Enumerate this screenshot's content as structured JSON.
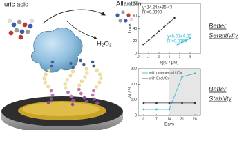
{
  "illustration": {
    "substrate": "uric acid",
    "product": "Allantoin",
    "byproduct": "H₂O₂"
  },
  "annotations": [
    [
      "Better",
      "Sensitivity"
    ],
    [
      "Better",
      "Stability"
    ]
  ],
  "chart_data": [
    {
      "type": "line",
      "x_label": "lg[C / μM]",
      "y_label": "I / nA",
      "xlim": [
        -2,
        4
      ],
      "xticks": [
        -2,
        -1,
        0,
        1,
        2,
        3
      ],
      "ylim": [
        0,
        80
      ],
      "yticks": [
        0,
        20,
        40,
        60,
        80
      ],
      "annotations": [
        "y=14.24x+35.43",
        "R²=0.9990",
        "y=8.38x-0.89",
        "R²=0.9960"
      ],
      "series": [
        {
          "color": "#333333",
          "x": [
            -1.5,
            -1,
            -0.5,
            0,
            0.5,
            1,
            1.5
          ],
          "values": [
            14.1,
            21.2,
            28.3,
            35.4,
            42.6,
            49.7,
            56.8
          ]
        },
        {
          "color": "#29b6d6",
          "x": [
            1.8,
            2.2,
            2.6,
            3
          ],
          "values": [
            14.2,
            17.5,
            20.9,
            24.3
          ]
        }
      ]
    },
    {
      "type": "line",
      "x_label": "Days",
      "y_label": "ΔI / %",
      "xlim": [
        -3,
        31
      ],
      "xticks": [
        0,
        7,
        14,
        21,
        28
      ],
      "ylim": [
        0,
        300
      ],
      "yticks": [
        0,
        100,
        200,
        300
      ],
      "shaded_x": [
        14,
        31
      ],
      "shade_color": "#e6e6e6",
      "series": [
        {
          "name": "with commercial UOx",
          "color": "#29b6d6",
          "x": [
            0,
            7,
            14,
            21,
            28
          ],
          "values": [
            40,
            40,
            40,
            250,
            270
          ]
        },
        {
          "name": "with EnqUOx",
          "color": "#333333",
          "x": [
            0,
            7,
            14,
            21,
            28
          ],
          "values": [
            80,
            80,
            80,
            80,
            80
          ]
        }
      ]
    }
  ]
}
